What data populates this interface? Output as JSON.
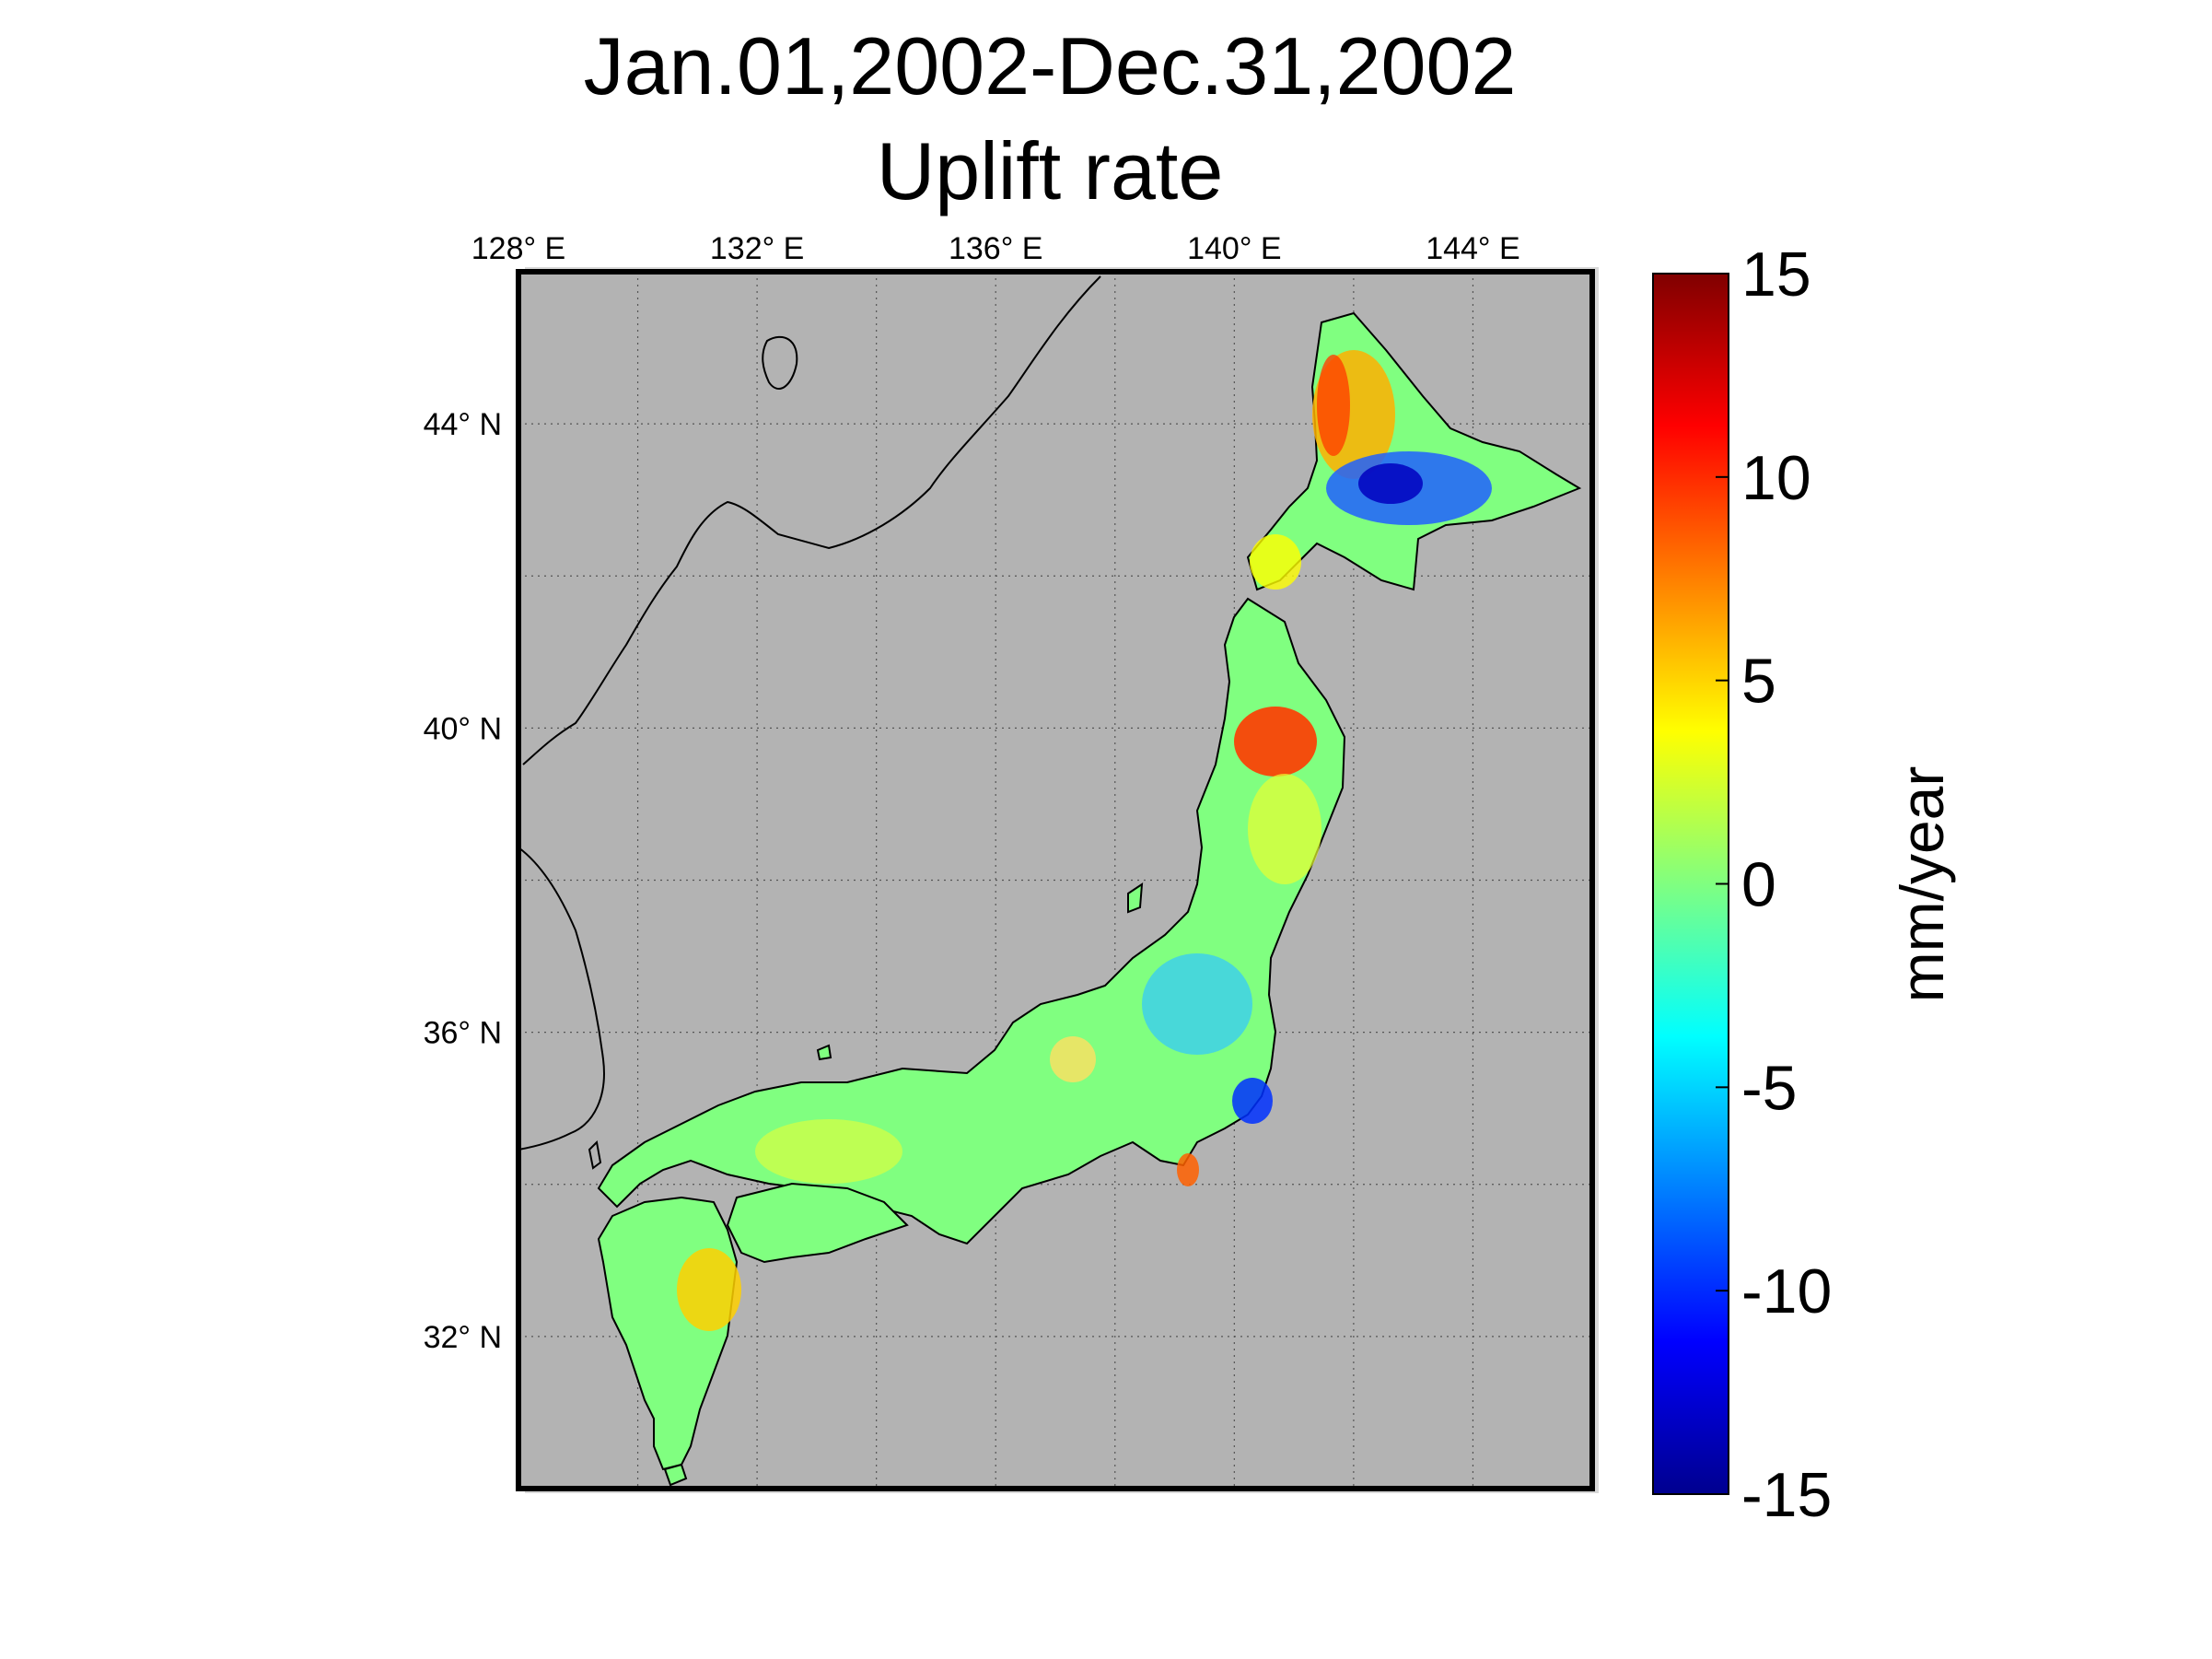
{
  "title": {
    "line1": "Jan.01,2002-Dec.31,2002",
    "line2": "Uplift rate"
  },
  "map": {
    "lon_labels": [
      "128° E",
      "132° E",
      "136° E",
      "140° E",
      "144° E"
    ],
    "lat_labels": [
      "44° N",
      "40° N",
      "36° N",
      "32° N"
    ],
    "lon_range": [
      128,
      146
    ],
    "lat_range": [
      30,
      46
    ],
    "ocean_color": "#b3b3b3",
    "grid": true
  },
  "colorbar": {
    "label": "mm/year",
    "ticks": [
      "15",
      "10",
      "5",
      "0",
      "-5",
      "-10",
      "-15"
    ],
    "range": [
      -15,
      15
    ],
    "colormap": "jet"
  },
  "regions": [
    {
      "name": "Hokkaido north",
      "value": 9
    },
    {
      "name": "Hokkaido east",
      "value": -12
    },
    {
      "name": "Akita",
      "value": 10
    },
    {
      "name": "Kanto",
      "value": -9
    },
    {
      "name": "Kyushu",
      "value": 4
    }
  ]
}
